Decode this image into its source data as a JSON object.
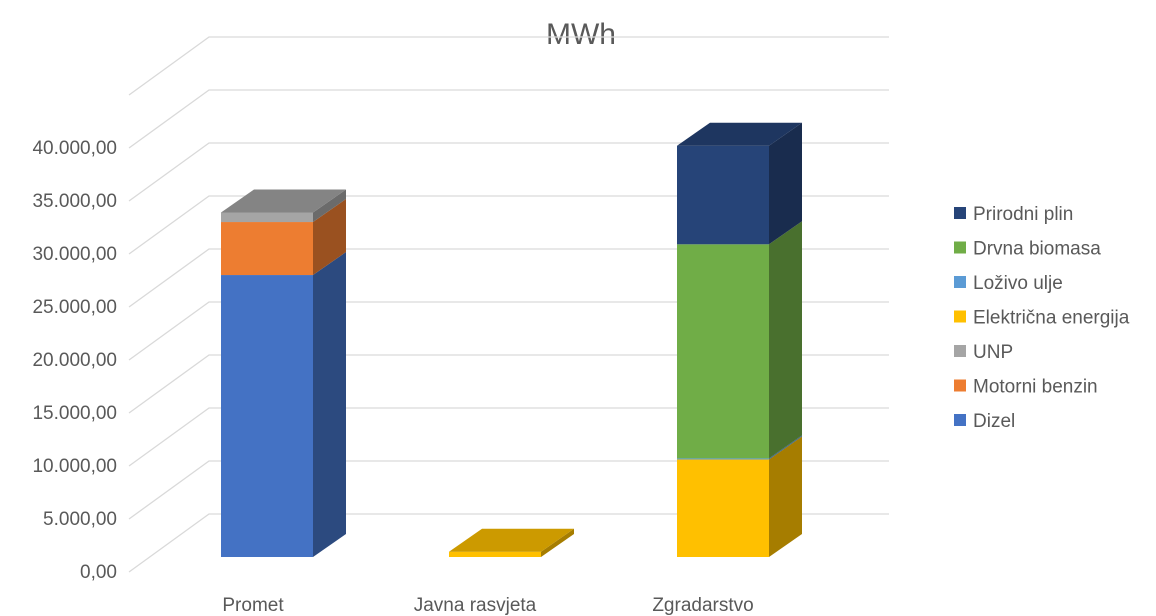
{
  "chart_data": {
    "type": "bar",
    "stacked": true,
    "three_d": true,
    "title": "MWh",
    "categories": [
      "Promet",
      "Javna rasvjeta",
      "Zgradarstvo"
    ],
    "y_ticks": [
      "0,00",
      "5.000,00",
      "10.000,00",
      "15.000,00",
      "20.000,00",
      "25.000,00",
      "30.000,00",
      "35.000,00",
      "40.000,00"
    ],
    "ylim": [
      0,
      45000
    ],
    "grid": true,
    "legend_position": "right",
    "series": [
      {
        "name": "Dizel",
        "color": "#4472c4",
        "values": [
          26600,
          0,
          0
        ]
      },
      {
        "name": "Motorni benzin",
        "color": "#ed7d31",
        "values": [
          5000,
          0,
          0
        ]
      },
      {
        "name": "UNP",
        "color": "#a5a5a5",
        "values": [
          900,
          0,
          0
        ]
      },
      {
        "name": "Električna energija",
        "color": "#ffc000",
        "values": [
          0,
          500,
          9200
        ]
      },
      {
        "name": "Loživo ulje",
        "color": "#5b9bd5",
        "values": [
          0,
          0,
          100
        ]
      },
      {
        "name": "Drvna biomasa",
        "color": "#70ad47",
        "values": [
          0,
          0,
          20200
        ]
      },
      {
        "name": "Prirodni plin",
        "color": "#264478",
        "values": [
          0,
          0,
          9300
        ]
      }
    ]
  }
}
